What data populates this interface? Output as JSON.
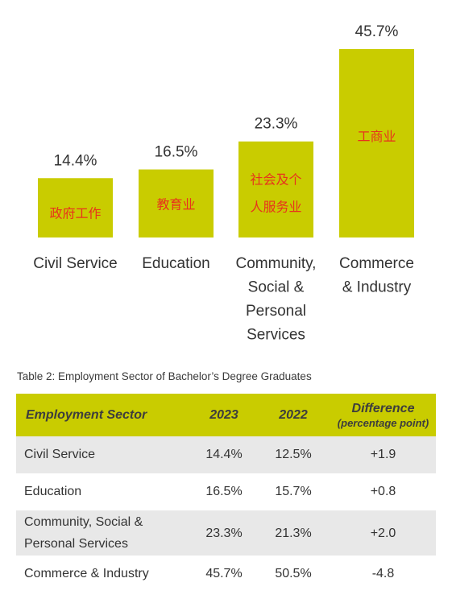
{
  "chart_data": {
    "type": "bar",
    "categories": [
      "Civil Service",
      "Education",
      "Community, Social & Personal Services",
      "Commerce & Industry"
    ],
    "category_label_lines": [
      [
        "Civil Service"
      ],
      [
        "Education"
      ],
      [
        "Community,",
        "Social &",
        "Personal",
        "Services"
      ],
      [
        "Commerce",
        "& Industry"
      ]
    ],
    "values": [
      14.4,
      16.5,
      23.3,
      45.7
    ],
    "data_labels": [
      "14.4%",
      "16.5%",
      "23.3%",
      "45.7%"
    ],
    "bar_inner_labels": [
      [
        "政府工作"
      ],
      [
        "教育业"
      ],
      [
        "社会及个",
        "人服务业"
      ],
      [
        "工商业"
      ]
    ],
    "ylim": [
      0,
      45.7
    ],
    "grid": false,
    "bar_color": "#c9cc00",
    "inner_label_color": "#e8321c",
    "text_color": "#333333"
  },
  "table": {
    "caption": "Table 2: Employment Sector of Bachelor’s Degree Graduates",
    "header_color": "#c9cc00",
    "headers": {
      "sector": "Employment Sector",
      "y2023": "2023",
      "y2022": "2022",
      "difference": "Difference",
      "difference_unit": "(percentage point)"
    },
    "rows": [
      {
        "sector": "Civil Service",
        "y2023": "14.4%",
        "y2022": "12.5%",
        "difference": "+1.9"
      },
      {
        "sector": "Education",
        "y2023": "16.5%",
        "y2022": "15.7%",
        "difference": "+0.8"
      },
      {
        "sector": "Community, Social & Personal Services",
        "y2023": "23.3%",
        "y2022": "21.3%",
        "difference": "+2.0"
      },
      {
        "sector": "Commerce & Industry",
        "y2023": "45.7%",
        "y2022": "50.5%",
        "difference": "-4.8"
      }
    ]
  }
}
